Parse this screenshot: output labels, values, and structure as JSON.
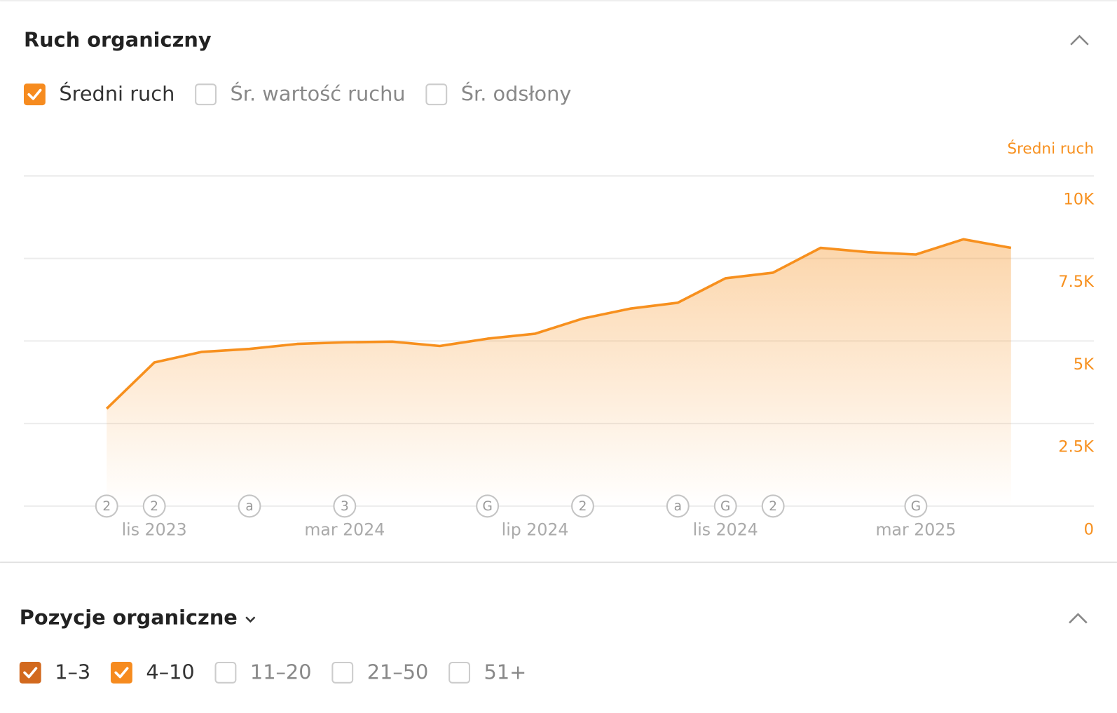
{
  "header": {
    "title": "Ruch organiczny"
  },
  "metrics": [
    {
      "label": "Średni ruch",
      "checked": true,
      "color": "#f68b1f"
    },
    {
      "label": "Śr. wartość ruchu",
      "checked": false
    },
    {
      "label": "Śr. odsłony",
      "checked": false
    }
  ],
  "chart_data": {
    "type": "area",
    "y_axis_label": "Średni ruch",
    "categories": [
      null,
      "lis 2023",
      null,
      null,
      null,
      "mar 2024",
      null,
      null,
      null,
      "lip 2024",
      null,
      null,
      null,
      "lis 2024",
      null,
      null,
      null,
      "mar 2025",
      null,
      null
    ],
    "event_markers": [
      "2",
      "2",
      null,
      "a",
      null,
      "3",
      null,
      null,
      "G",
      null,
      "2",
      null,
      "a",
      "G",
      "2",
      null,
      null,
      "G",
      null,
      null
    ],
    "series": [
      {
        "name": "Średni ruch",
        "color": "#f7901e",
        "values": [
          2950,
          4350,
          4670,
          4760,
          4910,
          4960,
          4980,
          4850,
          5070,
          5220,
          5680,
          5980,
          6160,
          6900,
          7070,
          7820,
          7690,
          7620,
          8080,
          7820
        ]
      }
    ],
    "ylim": [
      0,
      10000
    ],
    "yticks": [
      0,
      {
        "value": 2500,
        "label": "2.5K"
      },
      {
        "value": 5000,
        "label": "5K"
      },
      {
        "value": 7500,
        "label": "7.5K"
      },
      {
        "value": 10000,
        "label": "10K"
      }
    ],
    "grid": true
  },
  "positions": {
    "title": "Pozycje organiczne",
    "filters": [
      {
        "label": "1–3",
        "checked": true,
        "color": "#d2691e"
      },
      {
        "label": "4–10",
        "checked": true,
        "color": "#f68b1f"
      },
      {
        "label": "11–20",
        "checked": false
      },
      {
        "label": "21–50",
        "checked": false
      },
      {
        "label": "51+",
        "checked": false
      }
    ]
  }
}
